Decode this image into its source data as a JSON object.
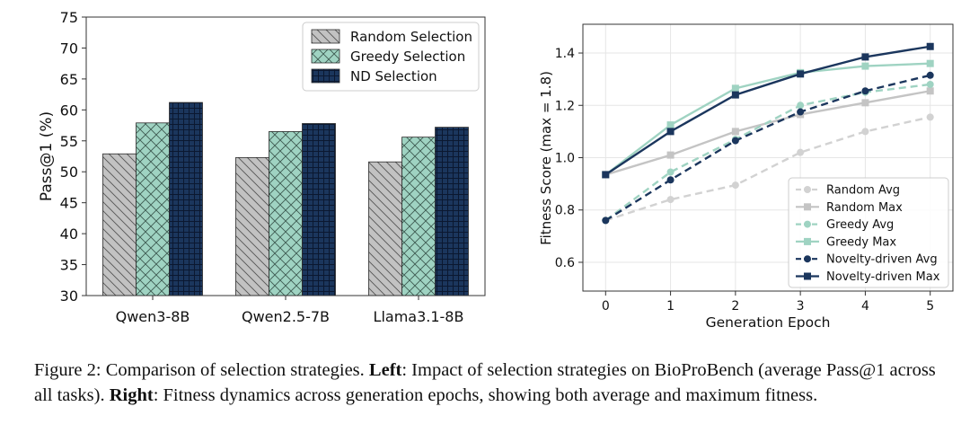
{
  "chart_data": [
    {
      "type": "bar",
      "ylabel": "Pass@1 (%)",
      "ylim": [
        30,
        75
      ],
      "yticks": [
        30,
        35,
        40,
        45,
        50,
        55,
        60,
        65,
        70,
        75
      ],
      "categories": [
        "Qwen3-8B",
        "Qwen2.5-7B",
        "Llama3.1-8B"
      ],
      "legend_position": "top-right",
      "series": [
        {
          "name": "Random Selection",
          "values": [
            52.9,
            52.3,
            51.6
          ],
          "color": "#c2c2c2",
          "hatch": "diagonal"
        },
        {
          "name": "Greedy Selection",
          "values": [
            57.9,
            56.5,
            55.6
          ],
          "color": "#9fd3c2",
          "hatch": "cross"
        },
        {
          "name": "ND Selection",
          "values": [
            61.2,
            57.8,
            57.2
          ],
          "color": "#1b365d",
          "hatch": "grid"
        }
      ]
    },
    {
      "type": "line",
      "xlabel": "Generation Epoch",
      "ylabel": "Fitness Score (max = 1.8)",
      "x": [
        0,
        1,
        2,
        3,
        4,
        5
      ],
      "xlim": [
        -0.35,
        5.35
      ],
      "ylim": [
        0.49,
        1.51
      ],
      "yticks": [
        0.6,
        0.8,
        1.0,
        1.2,
        1.4
      ],
      "ytick_labels": [
        "0.6",
        "0.8",
        "1.0",
        "1.2",
        "1.4"
      ],
      "legend_position": "bottom-right",
      "series": [
        {
          "name": "Random Avg",
          "values": [
            0.76,
            0.84,
            0.895,
            1.02,
            1.1,
            1.155
          ],
          "color": "#d2d2d2",
          "dashed": true,
          "marker": "circle"
        },
        {
          "name": "Random Max",
          "values": [
            0.935,
            1.01,
            1.1,
            1.165,
            1.21,
            1.255
          ],
          "color": "#c4c4c4",
          "dashed": false,
          "marker": "square"
        },
        {
          "name": "Greedy Avg",
          "values": [
            0.76,
            0.945,
            1.07,
            1.2,
            1.25,
            1.28
          ],
          "color": "#9fd3c2",
          "dashed": true,
          "marker": "circle"
        },
        {
          "name": "Greedy Max",
          "values": [
            0.935,
            1.125,
            1.265,
            1.325,
            1.35,
            1.36
          ],
          "color": "#9fd3c2",
          "dashed": false,
          "marker": "square"
        },
        {
          "name": "Novelty-driven Avg",
          "values": [
            0.76,
            0.915,
            1.065,
            1.175,
            1.255,
            1.315
          ],
          "color": "#1b365d",
          "dashed": true,
          "marker": "circle"
        },
        {
          "name": "Novelty-driven Max",
          "values": [
            0.935,
            1.1,
            1.24,
            1.32,
            1.385,
            1.425
          ],
          "color": "#1b365d",
          "dashed": false,
          "marker": "square"
        }
      ]
    }
  ],
  "caption": {
    "figure_label": "Figure 2: Comparison of selection strategies. ",
    "left_label": "Left",
    "left_text": ": Impact of selection strategies on BioProBench (average Pass@1 across all tasks). ",
    "right_label": "Right",
    "right_text": ": Fitness dynamics across generation epochs, showing both average and maximum fitness."
  }
}
